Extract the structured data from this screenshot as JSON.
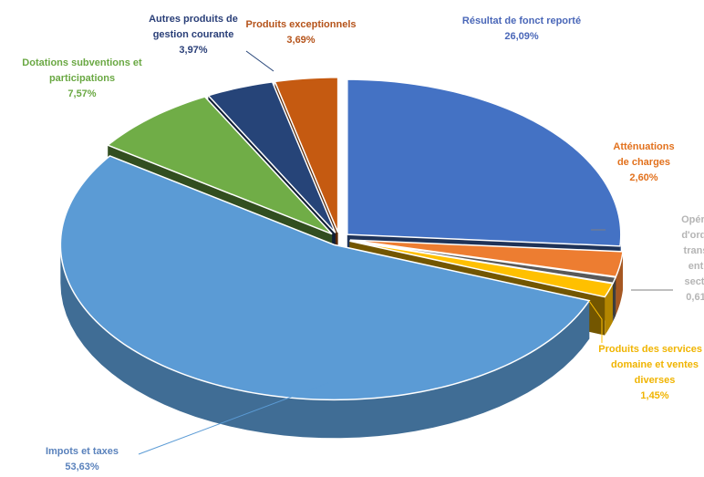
{
  "chart_data": {
    "type": "pie",
    "title": "",
    "three_d": true,
    "exploded": true,
    "legend": "none",
    "slices": [
      {
        "name_lines": [
          "Résultat de fonct reporté"
        ],
        "value": 26.09,
        "value_label": "26,09%",
        "color": "#4472c4",
        "label_color": "#4a67b8"
      },
      {
        "name_lines": [
          "Atténuations",
          "de charges"
        ],
        "value": 2.6,
        "value_label": "2,60%",
        "color": "#ed7d31",
        "label_color": "#e2711d"
      },
      {
        "name_lines": [
          "Opéra",
          "d'ordr",
          "trans",
          "ent",
          "secti"
        ],
        "value": 0.61,
        "value_label": "0,61",
        "color": "#595959",
        "label_color": "#b5b5b5"
      },
      {
        "name_lines": [
          "Produits des services d",
          "domaine et ventes",
          "diverses"
        ],
        "value": 1.45,
        "value_label": "1,45%",
        "color": "#ffc000",
        "label_color": "#f0b400"
      },
      {
        "name_lines": [
          "Impots et taxes"
        ],
        "value": 53.63,
        "value_label": "53,63%",
        "color": "#5b9bd5",
        "label_color": "#5a82bc"
      },
      {
        "name_lines": [
          "Dotations subventions et",
          "participations"
        ],
        "value": 7.57,
        "value_label": "7,57%",
        "color": "#70ad47",
        "label_color": "#6aa843"
      },
      {
        "name_lines": [
          "Autres produits de",
          "gestion courante"
        ],
        "value": 3.97,
        "value_label": "3,97%",
        "color": "#264478",
        "label_color": "#2a3f78"
      },
      {
        "name_lines": [
          "Produits exceptionnels"
        ],
        "value": 3.69,
        "value_label": "3,69%",
        "color": "#c55a11",
        "label_color": "#b5531a"
      }
    ]
  }
}
